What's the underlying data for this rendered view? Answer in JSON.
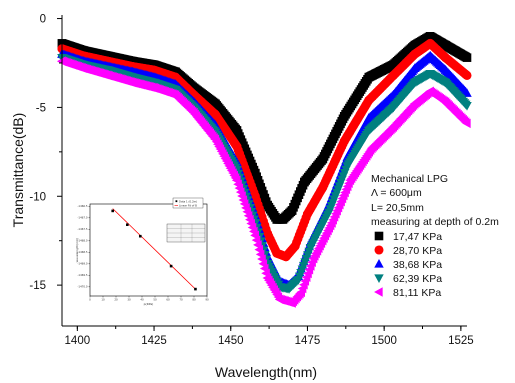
{
  "chart_data": {
    "type": "scatter",
    "xlabel": "Wavelength(nm)",
    "ylabel": "Transmittance(dB)",
    "xlim": [
      1395,
      1527
    ],
    "ylim": [
      -17.3,
      0.2
    ],
    "xticks": [
      1400,
      1425,
      1450,
      1475,
      1500,
      1525
    ],
    "yticks": [
      0,
      -5,
      -10,
      -15
    ],
    "annotation": [
      "Mechanical LPG",
      "Λ = 600μm",
      "L= 20,5mm",
      "measuring at depth of 0.2m"
    ],
    "legend_position": "right",
    "series": [
      {
        "name": "17,47 KPa",
        "marker": "square",
        "color": "#000000",
        "x": [
          1395,
          1402,
          1410,
          1418,
          1425,
          1432,
          1438,
          1445,
          1452,
          1458,
          1462,
          1465,
          1467,
          1470,
          1474,
          1480,
          1487,
          1495,
          1503,
          1510,
          1515,
          1520,
          1527
        ],
        "y": [
          -1.4,
          -1.8,
          -2.1,
          -2.4,
          -2.6,
          -3.0,
          -3.9,
          -4.8,
          -6.3,
          -8.7,
          -10.5,
          -11.3,
          -11.3,
          -10.8,
          -9.2,
          -7.9,
          -5.5,
          -3.3,
          -2.6,
          -1.5,
          -1.0,
          -1.5,
          -2.2
        ]
      },
      {
        "name": "28,70 KPa",
        "marker": "circle",
        "color": "#ff0000",
        "x": [
          1395,
          1402,
          1410,
          1418,
          1425,
          1432,
          1438,
          1445,
          1452,
          1458,
          1462,
          1465,
          1468,
          1471,
          1475,
          1480,
          1487,
          1495,
          1503,
          1510,
          1515,
          1520,
          1527
        ],
        "y": [
          -1.7,
          -2.1,
          -2.4,
          -2.7,
          -2.9,
          -3.3,
          -4.3,
          -5.4,
          -7.2,
          -10.0,
          -12.1,
          -13.2,
          -13.4,
          -12.8,
          -11.0,
          -9.5,
          -6.9,
          -4.6,
          -3.2,
          -2.0,
          -1.4,
          -2.2,
          -3.2
        ]
      },
      {
        "name": "38,68 KPa",
        "marker": "triangle-up",
        "color": "#0000ff",
        "x": [
          1395,
          1402,
          1410,
          1418,
          1425,
          1432,
          1438,
          1445,
          1452,
          1458,
          1462,
          1466,
          1469,
          1472,
          1476,
          1482,
          1488,
          1495,
          1503,
          1510,
          1515,
          1520,
          1527
        ],
        "y": [
          -2.0,
          -2.4,
          -2.7,
          -3.0,
          -3.3,
          -3.7,
          -4.7,
          -6.0,
          -8.1,
          -11.1,
          -13.4,
          -14.8,
          -15.0,
          -14.5,
          -12.6,
          -10.5,
          -7.8,
          -5.6,
          -4.3,
          -2.8,
          -2.1,
          -2.9,
          -4.2
        ]
      },
      {
        "name": "62,39 KPa",
        "marker": "triangle-down",
        "color": "#008080",
        "x": [
          1395,
          1402,
          1410,
          1418,
          1425,
          1432,
          1438,
          1445,
          1452,
          1458,
          1462,
          1466,
          1469,
          1472,
          1476,
          1482,
          1488,
          1495,
          1503,
          1510,
          1515,
          1520,
          1527
        ],
        "y": [
          -2.2,
          -2.6,
          -2.9,
          -3.3,
          -3.6,
          -4.0,
          -5.0,
          -6.4,
          -8.5,
          -11.5,
          -13.8,
          -15.1,
          -15.2,
          -14.7,
          -12.9,
          -10.9,
          -8.3,
          -6.3,
          -5.0,
          -3.6,
          -3.1,
          -3.6,
          -4.9
        ]
      },
      {
        "name": "81,11 KPa",
        "marker": "triangle-left",
        "color": "#ff00ff",
        "x": [
          1395,
          1402,
          1410,
          1418,
          1425,
          1432,
          1438,
          1445,
          1452,
          1458,
          1462,
          1466,
          1470,
          1473,
          1477,
          1483,
          1489,
          1496,
          1503,
          1510,
          1515,
          1520,
          1527
        ],
        "y": [
          -2.4,
          -2.8,
          -3.2,
          -3.6,
          -3.9,
          -4.3,
          -5.3,
          -6.8,
          -9.1,
          -12.2,
          -14.6,
          -15.8,
          -16.0,
          -15.4,
          -13.5,
          -11.5,
          -9.1,
          -7.3,
          -6.1,
          -4.8,
          -4.1,
          -4.7,
          -5.9
        ]
      }
    ],
    "inset": {
      "type": "scatter",
      "xlabel": "p(KPa)",
      "ylabel": "wavelength(nm)",
      "xlim": [
        0,
        90
      ],
      "ylim": [
        -1470.4,
        -1466.4
      ],
      "xticks": [
        0,
        10,
        20,
        30,
        40,
        50,
        60,
        70,
        80,
        90
      ],
      "yticks": [
        -1466.5,
        -1467.0,
        -1467.5,
        -1468.0,
        -1468.5,
        -1469.0,
        -1469.5,
        -1470.0
      ],
      "legend": [
        "Data 1 (0.2m)",
        "Linear Fit of B"
      ],
      "points_x": [
        17.47,
        28.7,
        38.68,
        62.39,
        81.11
      ],
      "points_y": [
        -1466.7,
        -1467.3,
        -1467.8,
        -1469.1,
        -1470.1
      ],
      "fit_x": [
        17.47,
        81.11
      ],
      "fit_y": [
        -1466.6,
        -1470.1
      ],
      "colors": {
        "points": "#000000",
        "fit": "#ff0000"
      }
    }
  }
}
